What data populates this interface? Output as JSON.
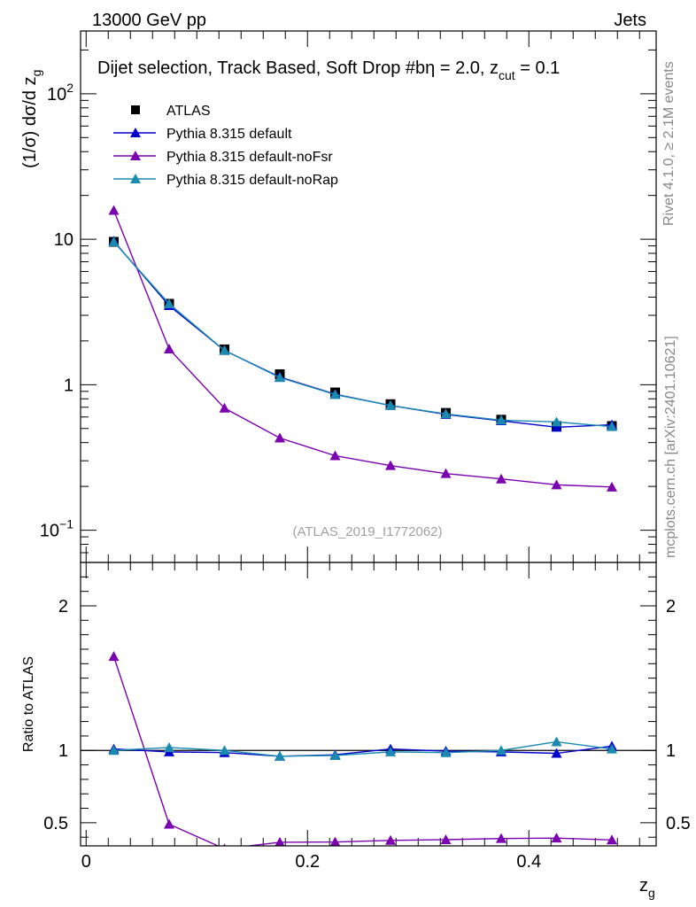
{
  "header": {
    "energy": "13000 GeV pp",
    "category": "Jets"
  },
  "side_labels": {
    "rivet": "Rivet 4.1.0, ≥ 2.1M events",
    "site": "mcplots.cern.ch [arXiv:2401.10621]"
  },
  "chart_data": [
    {
      "type": "line",
      "title": "Dijet selection, Track Based, Soft Drop #bη = 2.0, z",
      "title_sub": "cut",
      "title_tail": " = 0.1",
      "xlabel": "z",
      "xlabel_sub": "g",
      "ylabel": "(1/σ) dσ/d z",
      "ylabel_sub": "g",
      "yscale": "log",
      "xlim": [
        -0.005,
        0.515
      ],
      "ylim": [
        0.06,
        270
      ],
      "analysis_id": "(ATLAS_2019_I1772062)",
      "x": [
        0.025,
        0.075,
        0.125,
        0.175,
        0.225,
        0.275,
        0.325,
        0.375,
        0.425,
        0.475
      ],
      "yticks": [
        {
          "value": 0.1,
          "base": "10",
          "exp": "−1"
        },
        {
          "value": 1,
          "base": "1",
          "exp": ""
        },
        {
          "value": 10,
          "base": "10",
          "exp": ""
        },
        {
          "value": 100,
          "base": "10",
          "exp": "2"
        }
      ],
      "series": [
        {
          "name": "ATLAS",
          "color": "#000000",
          "marker": "square",
          "values": [
            9.6,
            3.6,
            1.75,
            1.18,
            0.885,
            0.735,
            0.64,
            0.575,
            0.52,
            0.52
          ]
        },
        {
          "name": "Pythia 8.315 default",
          "color": "#0000cc",
          "marker": "triangle",
          "values": [
            9.7,
            3.5,
            1.72,
            1.13,
            0.86,
            0.72,
            0.625,
            0.565,
            0.51,
            0.53
          ]
        },
        {
          "name": "Pythia 8.315 default-noFsr",
          "color": "#7a00b0",
          "marker": "triangle",
          "values": [
            15.8,
            1.76,
            0.69,
            0.43,
            0.325,
            0.278,
            0.245,
            0.225,
            0.205,
            0.198
          ]
        },
        {
          "name": "Pythia 8.315 default-noRap",
          "color": "#1a8ab0",
          "marker": "triangle",
          "values": [
            9.6,
            3.6,
            1.72,
            1.12,
            0.855,
            0.72,
            0.63,
            0.57,
            0.555,
            0.515
          ]
        }
      ],
      "legend_position": "top-left"
    },
    {
      "type": "line",
      "ylabel": "Ratio to ATLAS",
      "yscale": "linear",
      "xlim": [
        -0.005,
        0.515
      ],
      "ylim": [
        0.34,
        2.3
      ],
      "reference_line": 1,
      "x": [
        0.025,
        0.075,
        0.125,
        0.175,
        0.225,
        0.275,
        0.325,
        0.375,
        0.425,
        0.475
      ],
      "xticks": [
        {
          "value": 0,
          "label": "0"
        },
        {
          "value": 0.2,
          "label": "0.2"
        },
        {
          "value": 0.4,
          "label": "0.4"
        }
      ],
      "yticks": [
        {
          "value": 0.5,
          "label": "0.5"
        },
        {
          "value": 1,
          "label": "1"
        },
        {
          "value": 2,
          "label": "2"
        }
      ],
      "series": [
        {
          "name": "Pythia 8.315 default",
          "color": "#0000cc",
          "values": [
            1.01,
            0.99,
            0.985,
            0.96,
            0.97,
            1.01,
            0.995,
            0.99,
            0.98,
            1.03
          ]
        },
        {
          "name": "Pythia 8.315 default-noFsr",
          "color": "#7a00b0",
          "values": [
            1.65,
            0.49,
            0.32,
            0.365,
            0.367,
            0.378,
            0.383,
            0.391,
            0.394,
            0.381
          ]
        },
        {
          "name": "Pythia 8.315 default-noRap",
          "color": "#1a8ab0",
          "values": [
            1.0,
            1.02,
            1.0,
            0.96,
            0.965,
            0.99,
            0.985,
            1.0,
            1.06,
            1.01
          ]
        }
      ]
    }
  ]
}
